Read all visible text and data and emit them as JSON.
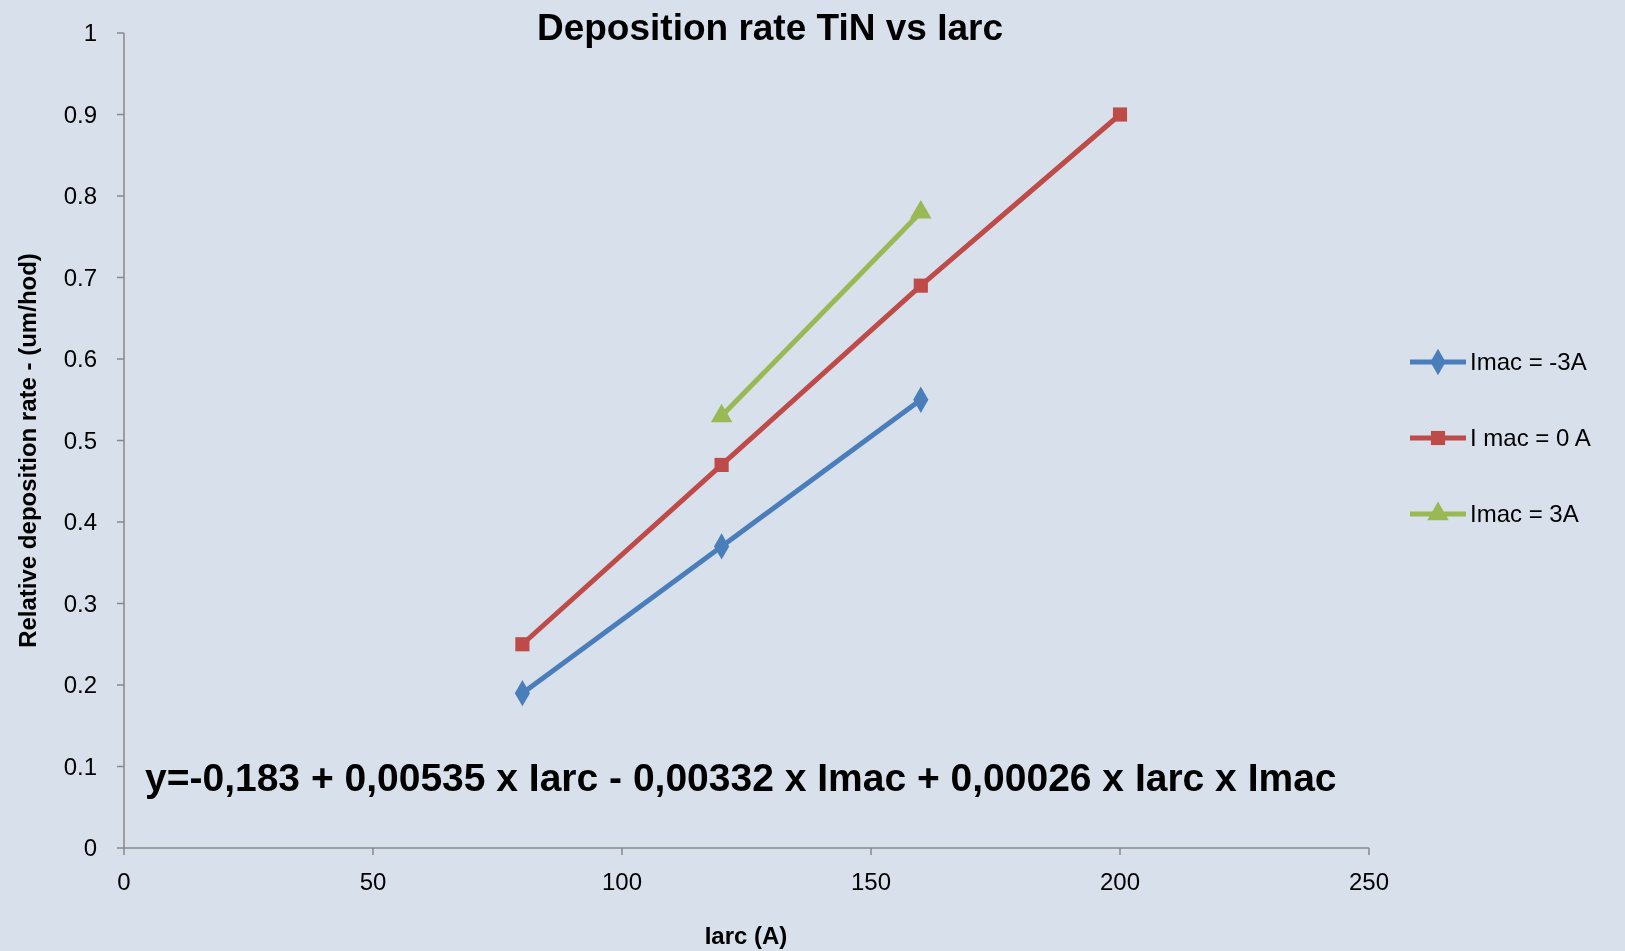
{
  "chart_data": {
    "type": "line",
    "title": "Deposition rate TiN vs  Iarc",
    "xlabel": "Iarc (A)",
    "ylabel": "Relative deposition  rate - (um/hod)",
    "xlim": [
      0,
      250
    ],
    "xticks": [
      0,
      50,
      100,
      150,
      200,
      250
    ],
    "ylim": [
      0,
      1
    ],
    "yticks": [
      0,
      0.1,
      0.2,
      0.3,
      0.4,
      0.5,
      0.6,
      0.7,
      0.8,
      0.9,
      1
    ],
    "grid": false,
    "legend": "right",
    "annotations": [
      "y=-0,183 + 0,00535 x Iarc - 0,00332 x Imac + 0,00026 x Iarc x Imac"
    ],
    "series": [
      {
        "name": "Imac = -3A",
        "color": "#4a7ebb",
        "marker": "diamond",
        "x": [
          80,
          120,
          160
        ],
        "values": [
          0.19,
          0.37,
          0.55
        ]
      },
      {
        "name": "I mac = 0 A",
        "color": "#be4b48",
        "marker": "square",
        "x": [
          80,
          120,
          160,
          200
        ],
        "values": [
          0.25,
          0.47,
          0.69,
          0.9
        ]
      },
      {
        "name": "Imac = 3A",
        "color": "#98b954",
        "marker": "triangle",
        "x": [
          120,
          160
        ],
        "values": [
          0.53,
          0.78
        ]
      }
    ]
  }
}
